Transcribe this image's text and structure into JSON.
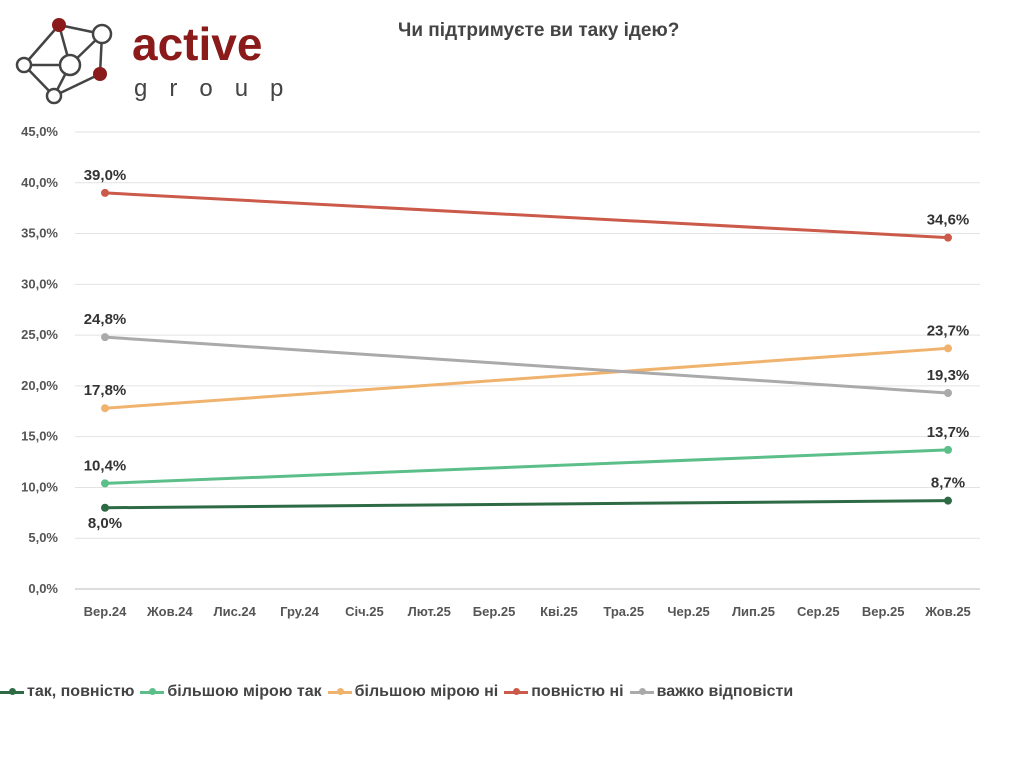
{
  "logo": {
    "text_main": "active",
    "text_sub": "group",
    "color": "#8b1a1a"
  },
  "chart_data": {
    "type": "line",
    "title": "Чи підтримуєте ви таку ідею?",
    "categories": [
      "Вер.24",
      "Жов.24",
      "Лис.24",
      "Гру.24",
      "Січ.25",
      "Лют.25",
      "Бер.25",
      "Кві.25",
      "Тра.25",
      "Чер.25",
      "Лип.25",
      "Сер.25",
      "Вер.25",
      "Жов.25"
    ],
    "yticks": [
      "0,0%",
      "5,0%",
      "10,0%",
      "15,0%",
      "20,0%",
      "25,0%",
      "30,0%",
      "35,0%",
      "40,0%",
      "45,0%"
    ],
    "ylim": [
      0,
      45
    ],
    "grid": true,
    "legend": "bottom",
    "series": [
      {
        "name": "так, повністю",
        "color": "#2e6b45",
        "points": [
          {
            "x": "Вер.24",
            "y": 8.0,
            "label": "8,0%"
          },
          {
            "x": "Жов.25",
            "y": 8.7,
            "label": "8,7%"
          }
        ]
      },
      {
        "name": "більшою мірою так",
        "color": "#5cbf8a",
        "points": [
          {
            "x": "Вер.24",
            "y": 10.4,
            "label": "10,4%"
          },
          {
            "x": "Жов.25",
            "y": 13.7,
            "label": "13,7%"
          }
        ]
      },
      {
        "name": "більшою мірою ні",
        "color": "#f0b36e",
        "points": [
          {
            "x": "Вер.24",
            "y": 17.8,
            "label": "17,8%"
          },
          {
            "x": "Жов.25",
            "y": 23.7,
            "label": "23,7%"
          }
        ]
      },
      {
        "name": "повністю ні",
        "color": "#cc5a4a",
        "points": [
          {
            "x": "Вер.24",
            "y": 39.0,
            "label": "39,0%"
          },
          {
            "x": "Жов.25",
            "y": 34.6,
            "label": "34,6%"
          }
        ]
      },
      {
        "name": "важко відповісти",
        "color": "#aaaaaa",
        "points": [
          {
            "x": "Вер.24",
            "y": 24.8,
            "label": "24,8%"
          },
          {
            "x": "Жов.25",
            "y": 19.3,
            "label": "19,3%"
          }
        ]
      }
    ]
  }
}
